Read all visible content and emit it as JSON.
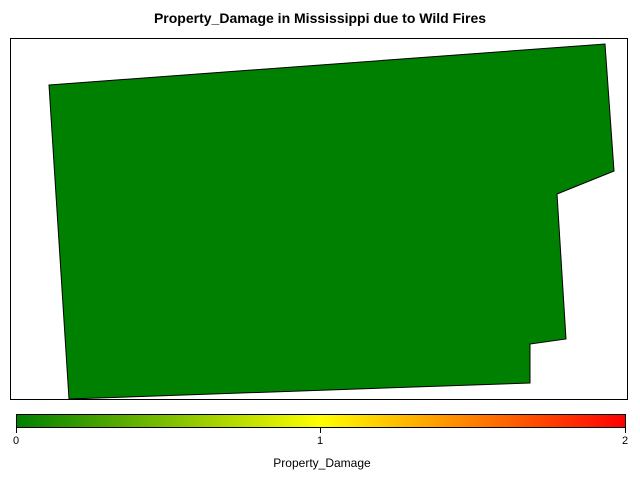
{
  "map": {
    "title": "Property_Damage in Mississippi due to Wild Fires",
    "region": {
      "name": "Mississippi",
      "property_damage": 0,
      "fill_color": "#008000"
    }
  },
  "legend": {
    "title": "Property_Damage",
    "min": 0,
    "max": 2,
    "ticks": [
      "0",
      "1",
      "2"
    ],
    "colors": {
      "low": "#008000",
      "mid": "#ffff00",
      "high": "#ff0000"
    }
  }
}
